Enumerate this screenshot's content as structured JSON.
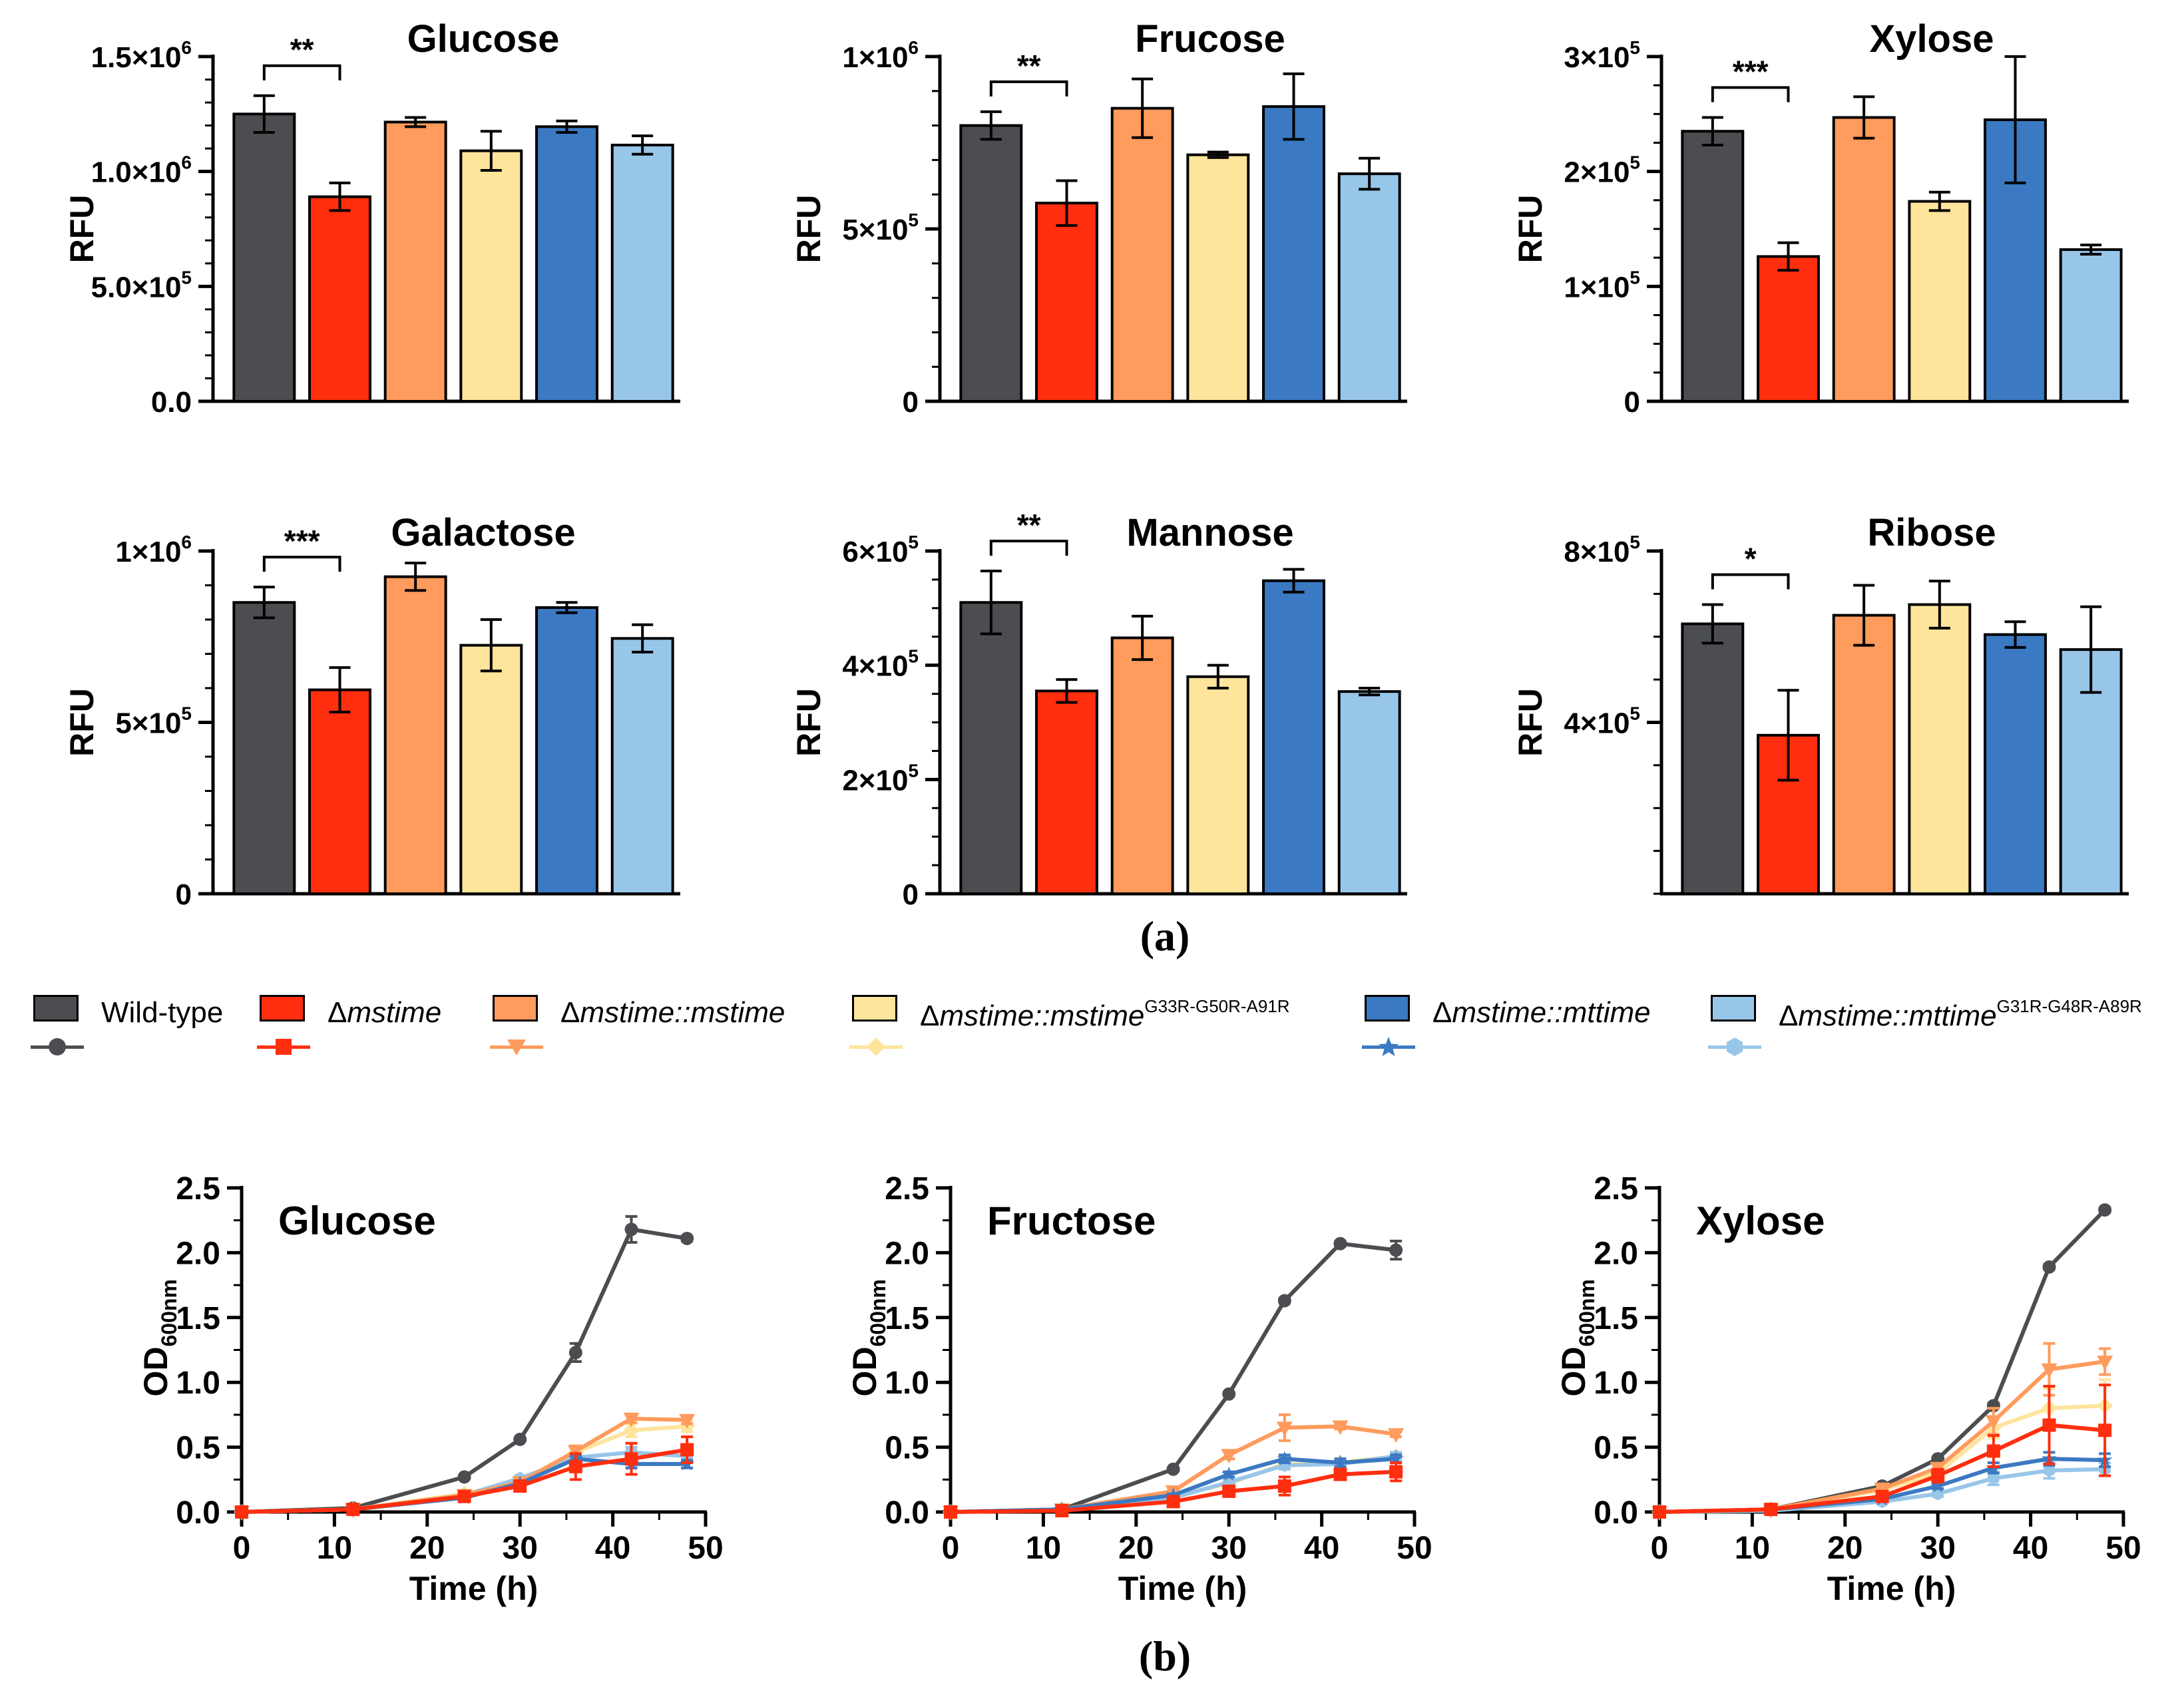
{
  "figure": {
    "panel_a_label": "(a)",
    "panel_b_label": "(b)"
  },
  "legend": [
    {
      "name": "wild-type",
      "label": "Wild-type",
      "color": "#4b4d50",
      "marker": "circle-icon"
    },
    {
      "name": "dmstime",
      "label_prefix": "Δ",
      "label_italic": "mstime",
      "label_sup": "",
      "color": "#ff2e0e",
      "marker": "square-icon"
    },
    {
      "name": "dmstime-mstime",
      "label_prefix": "Δ",
      "label_italic": "mstime::mstime",
      "label_sup": "",
      "color": "#ff9b5c",
      "marker": "triangle-down-icon"
    },
    {
      "name": "dmstime-mstime-mut",
      "label_prefix": "Δ",
      "label_italic": "mstime::mstime",
      "label_sup": "G33R-G50R-A91R",
      "color": "#ffe49c",
      "marker": "diamond-icon"
    },
    {
      "name": "dmstime-mttime",
      "label_prefix": "Δ",
      "label_italic": "mstime::mttime",
      "label_sup": "",
      "color": "#3b79c2",
      "marker": "star-icon"
    },
    {
      "name": "dmstime-mttime-mut",
      "label_prefix": "Δ",
      "label_italic": "mstime::mttime",
      "label_sup": "G31R-G48R-A89R",
      "color": "#98c6e9",
      "marker": "hexagon-icon"
    }
  ],
  "chart_data": [
    {
      "type": "bar",
      "title": "Glucose",
      "ylabel": "RFU",
      "ylim": [
        0,
        1500000
      ],
      "yticks": [
        {
          "v": 0,
          "label": "0.0"
        },
        {
          "v": 500000,
          "label": "5.0×10",
          "exp": "5"
        },
        {
          "v": 1000000,
          "label": "1.0×10",
          "exp": "6"
        },
        {
          "v": 1500000,
          "label": "1.5×10",
          "exp": "6"
        }
      ],
      "minor_step": 100000,
      "categories": [
        "Wild-type",
        "Δmstime",
        "Δmstime::mstime",
        "Δmstime::mstime G33R-G50R-A91R",
        "Δmstime::mttime",
        "Δmstime::mttime G31R-G48R-A89R"
      ],
      "values": [
        1250000,
        890000,
        1215000,
        1090000,
        1195000,
        1115000
      ],
      "errors": [
        80000,
        60000,
        20000,
        85000,
        25000,
        40000
      ],
      "significance": "**"
    },
    {
      "type": "bar",
      "title": "Frucose",
      "ylabel": "RFU",
      "ylim": [
        0,
        1000000
      ],
      "yticks": [
        {
          "v": 0,
          "label": "0"
        },
        {
          "v": 500000,
          "label": "5×10",
          "exp": "5"
        },
        {
          "v": 1000000,
          "label": "1×10",
          "exp": "6"
        }
      ],
      "minor_step": 100000,
      "categories": [
        "Wild-type",
        "Δmstime",
        "Δmstime::mstime",
        "Δmstime::mstime G33R-G50R-A91R",
        "Δmstime::mttime",
        "Δmstime::mttime G31R-G48R-A89R"
      ],
      "values": [
        800000,
        575000,
        850000,
        715000,
        855000,
        660000
      ],
      "errors": [
        40000,
        65000,
        85000,
        8000,
        95000,
        45000
      ],
      "significance": "**"
    },
    {
      "type": "bar",
      "title": "Xylose",
      "ylabel": "RFU",
      "ylim": [
        0,
        300000
      ],
      "yticks": [
        {
          "v": 0,
          "label": "0"
        },
        {
          "v": 100000,
          "label": "1×10",
          "exp": "5"
        },
        {
          "v": 200000,
          "label": "2×10",
          "exp": "5"
        },
        {
          "v": 300000,
          "label": "3×10",
          "exp": "5"
        }
      ],
      "minor_step": 25000,
      "categories": [
        "Wild-type",
        "Δmstime",
        "Δmstime::mstime",
        "Δmstime::mstime G33R-G50R-A91R",
        "Δmstime::mttime",
        "Δmstime::mttime G31R-G48R-A89R"
      ],
      "values": [
        235000,
        126000,
        247000,
        174000,
        245000,
        132000
      ],
      "errors": [
        12000,
        12000,
        18000,
        8000,
        55000,
        4000
      ],
      "significance": "***"
    },
    {
      "type": "bar",
      "title": "Galactose",
      "ylabel": "RFU",
      "ylim": [
        0,
        1000000
      ],
      "yticks": [
        {
          "v": 0,
          "label": "0"
        },
        {
          "v": 500000,
          "label": "5×10",
          "exp": "5"
        },
        {
          "v": 1000000,
          "label": "1×10",
          "exp": "6"
        }
      ],
      "minor_step": 100000,
      "categories": [
        "Wild-type",
        "Δmstime",
        "Δmstime::mstime",
        "Δmstime::mstime G33R-G50R-A91R",
        "Δmstime::mttime",
        "Δmstime::mttime G31R-G48R-A89R"
      ],
      "values": [
        850000,
        595000,
        925000,
        725000,
        835000,
        745000
      ],
      "errors": [
        45000,
        65000,
        40000,
        75000,
        15000,
        40000
      ],
      "significance": "***"
    },
    {
      "type": "bar",
      "title": "Mannose",
      "ylabel": "RFU",
      "ylim": [
        0,
        600000
      ],
      "yticks": [
        {
          "v": 0,
          "label": "0"
        },
        {
          "v": 200000,
          "label": "2×10",
          "exp": "5"
        },
        {
          "v": 400000,
          "label": "4×10",
          "exp": "5"
        },
        {
          "v": 600000,
          "label": "6×10",
          "exp": "5"
        }
      ],
      "minor_step": 50000,
      "categories": [
        "Wild-type",
        "Δmstime",
        "Δmstime::mstime",
        "Δmstime::mstime G33R-G50R-A91R",
        "Δmstime::mttime",
        "Δmstime::mttime G31R-G48R-A89R"
      ],
      "values": [
        510000,
        355000,
        448000,
        380000,
        548000,
        354000
      ],
      "errors": [
        55000,
        20000,
        38000,
        20000,
        20000,
        6000
      ],
      "significance": "**"
    },
    {
      "type": "bar",
      "title": "Ribose",
      "ylabel": "RFU",
      "ylim": [
        0,
        800000
      ],
      "yticks": [
        {
          "v": 400000,
          "label": "4×10",
          "exp": "5"
        },
        {
          "v": 800000,
          "label": "8×10",
          "exp": "5"
        }
      ],
      "minor_step": 100000,
      "categories": [
        "Wild-type",
        "Δmstime",
        "Δmstime::mstime",
        "Δmstime::mstime G33R-G50R-A91R",
        "Δmstime::mttime",
        "Δmstime::mttime G31R-G48R-A89R"
      ],
      "values": [
        630000,
        370000,
        650000,
        675000,
        605000,
        570000
      ],
      "errors": [
        45000,
        105000,
        70000,
        55000,
        30000,
        100000
      ],
      "significance": "*"
    },
    {
      "type": "line",
      "title": "Glucose",
      "xlabel": "Time (h)",
      "ylabel": "OD",
      "ylabel_sub": "600nm",
      "xlim": [
        0,
        50
      ],
      "ylim": [
        0,
        2.5
      ],
      "xticks": [
        0,
        10,
        20,
        30,
        40,
        50
      ],
      "yticks": [
        "0.0",
        "0.5",
        "1.0",
        "1.5",
        "2.0",
        "2.5"
      ],
      "x": [
        0,
        12,
        24,
        30,
        36,
        42,
        48
      ],
      "series": [
        {
          "name": "Wild-type",
          "values": [
            0.0,
            0.03,
            0.27,
            0.56,
            1.23,
            2.18,
            2.11
          ],
          "errors": [
            0,
            0,
            0.01,
            0.01,
            0.07,
            0.1,
            0.02
          ]
        },
        {
          "name": "Δmstime::mstime G33R-G50R-A91R",
          "values": [
            0.0,
            0.02,
            0.14,
            0.24,
            0.46,
            0.63,
            0.66
          ],
          "errors": [
            0,
            0,
            0.01,
            0.02,
            0.04,
            0.05,
            0.04
          ]
        },
        {
          "name": "Δmstime::mttime G31R-G48R-A89R",
          "values": [
            0.0,
            0.02,
            0.13,
            0.26,
            0.42,
            0.46,
            0.43
          ],
          "errors": [
            0,
            0,
            0.01,
            0.02,
            0.03,
            0.04,
            0.03
          ]
        },
        {
          "name": "Δmstime::mstime",
          "values": [
            0.0,
            0.02,
            0.13,
            0.23,
            0.47,
            0.72,
            0.71
          ],
          "errors": [
            0,
            0,
            0.01,
            0.02,
            0.04,
            0.03,
            0.03
          ]
        },
        {
          "name": "Δmstime::mttime",
          "values": [
            0.0,
            0.02,
            0.11,
            0.22,
            0.41,
            0.37,
            0.37
          ],
          "errors": [
            0,
            0,
            0.01,
            0.02,
            0.03,
            0.03,
            0.03
          ]
        },
        {
          "name": "Δmstime",
          "values": [
            0.0,
            0.02,
            0.12,
            0.2,
            0.35,
            0.41,
            0.48
          ],
          "errors": [
            0,
            0,
            0.01,
            0.03,
            0.1,
            0.12,
            0.1
          ]
        }
      ]
    },
    {
      "type": "line",
      "title": "Fructose",
      "xlabel": "Time (h)",
      "ylabel": "OD",
      "ylabel_sub": "600nm",
      "xlim": [
        0,
        50
      ],
      "ylim": [
        0,
        2.5
      ],
      "xticks": [
        0,
        10,
        20,
        30,
        40,
        50
      ],
      "yticks": [
        "0.0",
        "0.5",
        "1.0",
        "1.5",
        "2.0",
        "2.5"
      ],
      "x": [
        0,
        12,
        24,
        30,
        36,
        42,
        48
      ],
      "series": [
        {
          "name": "Wild-type",
          "values": [
            0.0,
            0.02,
            0.33,
            0.91,
            1.63,
            2.07,
            2.02
          ],
          "errors": [
            0,
            0,
            0.01,
            0.01,
            0.02,
            0.02,
            0.07
          ]
        },
        {
          "name": "Δmstime::mstime G33R-G50R-A91R",
          "values": [
            0.0,
            0.02,
            0.12,
            0.22,
            0.37,
            0.38,
            0.43
          ],
          "errors": [
            0,
            0,
            0.01,
            0.02,
            0.03,
            0.03,
            0.03
          ]
        },
        {
          "name": "Δmstime::mttime G31R-G48R-A89R",
          "values": [
            0.0,
            0.02,
            0.11,
            0.23,
            0.36,
            0.37,
            0.43
          ],
          "errors": [
            0,
            0,
            0.01,
            0.02,
            0.03,
            0.03,
            0.03
          ]
        },
        {
          "name": "Δmstime::mstime",
          "values": [
            0.0,
            0.02,
            0.16,
            0.44,
            0.65,
            0.66,
            0.6
          ],
          "errors": [
            0,
            0,
            0.01,
            0.03,
            0.1,
            0.02,
            0.02
          ]
        },
        {
          "name": "Δmstime::mttime",
          "values": [
            0.0,
            0.02,
            0.13,
            0.29,
            0.41,
            0.38,
            0.41
          ],
          "errors": [
            0,
            0,
            0.01,
            0.02,
            0.03,
            0.03,
            0.03
          ]
        },
        {
          "name": "Δmstime",
          "values": [
            0.0,
            0.01,
            0.08,
            0.16,
            0.2,
            0.29,
            0.31
          ],
          "errors": [
            0,
            0,
            0.01,
            0.03,
            0.07,
            0.04,
            0.07
          ]
        }
      ]
    },
    {
      "type": "line",
      "title": "Xylose",
      "xlabel": "Time (h)",
      "ylabel": "OD",
      "ylabel_sub": "600nm",
      "xlim": [
        0,
        50
      ],
      "ylim": [
        0,
        2.5
      ],
      "xticks": [
        0,
        10,
        20,
        30,
        40,
        50
      ],
      "yticks": [
        "0.0",
        "0.5",
        "1.0",
        "1.5",
        "2.0",
        "2.5"
      ],
      "x": [
        0,
        12,
        24,
        30,
        36,
        42,
        48
      ],
      "series": [
        {
          "name": "Wild-type",
          "values": [
            0.0,
            0.02,
            0.2,
            0.41,
            0.82,
            1.89,
            2.33
          ],
          "errors": [
            0,
            0,
            0.01,
            0.01,
            0.02,
            0.02,
            0.02
          ]
        },
        {
          "name": "Δmstime::mstime G33R-G50R-A91R",
          "values": [
            0.0,
            0.02,
            0.17,
            0.3,
            0.65,
            0.8,
            0.82
          ],
          "errors": [
            0,
            0,
            0.01,
            0.03,
            0.08,
            0.15,
            0.2
          ]
        },
        {
          "name": "Δmstime::mttime G31R-G48R-A89R",
          "values": [
            0.0,
            0.01,
            0.08,
            0.14,
            0.26,
            0.32,
            0.33
          ],
          "errors": [
            0,
            0,
            0.01,
            0.02,
            0.05,
            0.06,
            0.05
          ]
        },
        {
          "name": "Δmstime::mstime",
          "values": [
            0.0,
            0.02,
            0.18,
            0.34,
            0.7,
            1.1,
            1.16
          ],
          "errors": [
            0,
            0,
            0.01,
            0.03,
            0.1,
            0.2,
            0.1
          ]
        },
        {
          "name": "Δmstime::mttime",
          "values": [
            0.0,
            0.02,
            0.1,
            0.2,
            0.34,
            0.41,
            0.4
          ],
          "errors": [
            0,
            0,
            0.01,
            0.02,
            0.04,
            0.05,
            0.05
          ]
        },
        {
          "name": "Δmstime",
          "values": [
            0.0,
            0.02,
            0.12,
            0.28,
            0.47,
            0.67,
            0.63
          ],
          "errors": [
            0,
            0,
            0.01,
            0.05,
            0.12,
            0.3,
            0.35
          ]
        }
      ]
    }
  ]
}
